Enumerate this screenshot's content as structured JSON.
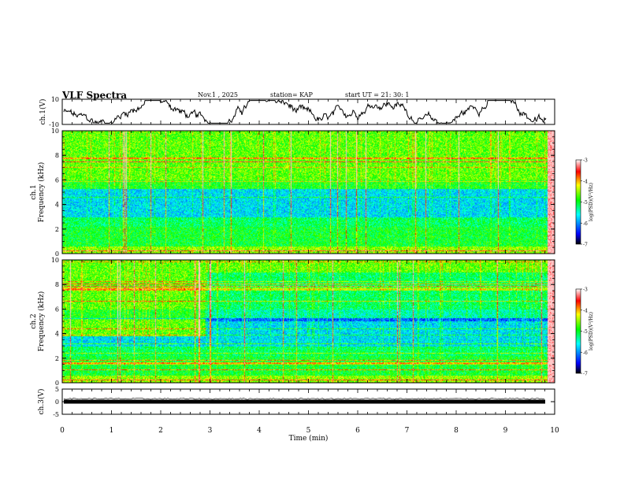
{
  "header": {
    "title": "VLF Spectra",
    "date": "Nov.1 , 2025",
    "station": "station= KAP",
    "start": "start UT = 21: 30: 1"
  },
  "chart_data": [
    {
      "type": "line",
      "name": "ch1-voltage",
      "ylabel": "ch.1(V)",
      "ylim": [
        -10,
        10
      ],
      "yticks": [
        "10",
        "-10"
      ],
      "xlim": [
        0,
        10
      ]
    },
    {
      "type": "heatmap",
      "name": "ch1-spectrogram",
      "ylabel": "ch.1 Frequency (kHz)",
      "ylim": [
        0,
        10
      ],
      "yticks": [
        "10",
        "8",
        "6",
        "4",
        "2",
        "0"
      ],
      "xlim": [
        0,
        10
      ],
      "colorbar": {
        "label": "log(PSD)(V²/Hz)",
        "range": [
          -7,
          -3
        ],
        "ticks": [
          "-3",
          "-4",
          "-5",
          "-6",
          "-7"
        ]
      }
    },
    {
      "type": "heatmap",
      "name": "ch2-spectrogram",
      "ylabel": "ch.2 Frequency (kHz)",
      "ylim": [
        0,
        10
      ],
      "yticks": [
        "10",
        "8",
        "6",
        "4",
        "2",
        "0"
      ],
      "xlim": [
        0,
        10
      ],
      "colorbar": {
        "label": "log(PSD)(V²/Hz)",
        "range": [
          -7,
          -3
        ],
        "ticks": [
          "-3",
          "-4",
          "-5",
          "-6",
          "-7"
        ]
      }
    },
    {
      "type": "line",
      "name": "ch3-voltage",
      "ylabel": "ch.3(V)",
      "ylim": [
        -5,
        5
      ],
      "yticks": [
        "5",
        "0",
        "-5"
      ],
      "xlim": [
        0,
        10
      ],
      "xlabel": "Time (min)",
      "xticks": [
        "0",
        "1",
        "2",
        "3",
        "4",
        "5",
        "6",
        "7",
        "8",
        "9",
        "10"
      ]
    }
  ]
}
